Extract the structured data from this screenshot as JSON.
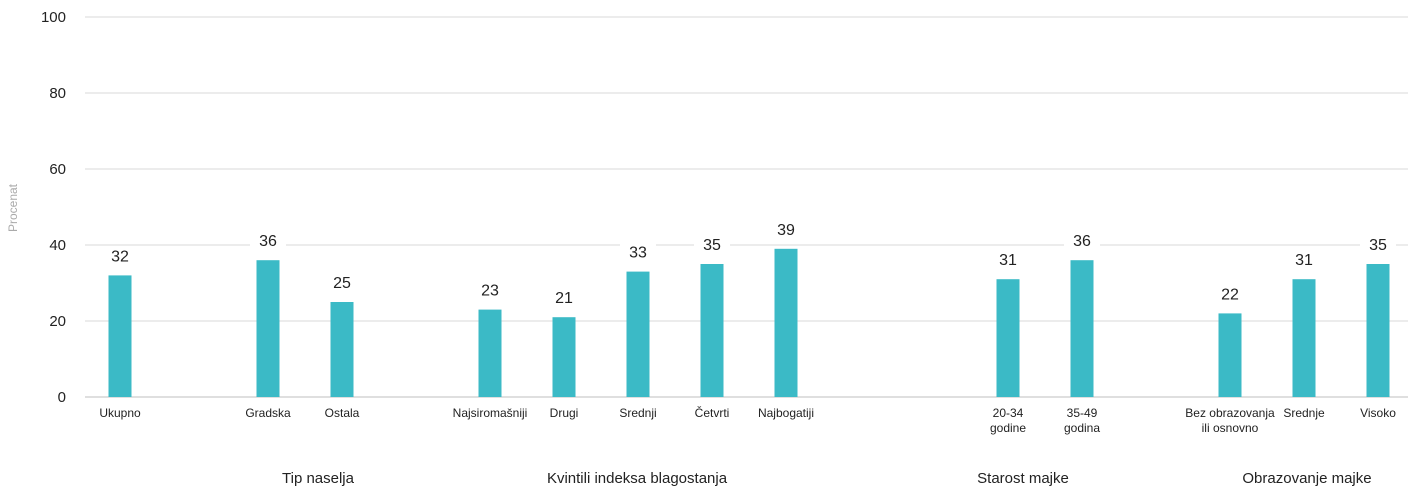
{
  "chart_data": {
    "type": "bar",
    "ylabel": "Procenat",
    "ylim": [
      0,
      100
    ],
    "yticks": [
      "0",
      "20",
      "40",
      "60",
      "80",
      "100"
    ],
    "grid": true,
    "colors": {
      "bar": "#3bbac6",
      "grid": "#d9d9d9",
      "text": "#222222",
      "axis_title": "#aaaaaa"
    },
    "categories": [
      [
        "Ukupno"
      ],
      [
        "Gradska"
      ],
      [
        "Ostala"
      ],
      [
        "Najsiromašniji"
      ],
      [
        "Drugi"
      ],
      [
        "Srednji"
      ],
      [
        "Četvrti"
      ],
      [
        "Najbogatiji"
      ],
      [
        "20-34",
        "godine"
      ],
      [
        "35-49",
        "godina"
      ],
      [
        "Bez obrazovanja",
        "ili osnovno"
      ],
      [
        "Srednje"
      ],
      [
        "Visoko"
      ]
    ],
    "values": [
      32,
      36,
      25,
      23,
      21,
      33,
      35,
      39,
      31,
      36,
      22,
      31,
      35
    ],
    "data_labels": [
      "32",
      "36",
      "25",
      "23",
      "21",
      "33",
      "35",
      "39",
      "31",
      "36",
      "22",
      "31",
      "35"
    ],
    "group_labels": [
      "Tip naselja",
      "Kvintili indeksa blagostanja",
      "Starost majke",
      "Obrazovanje majke"
    ]
  }
}
